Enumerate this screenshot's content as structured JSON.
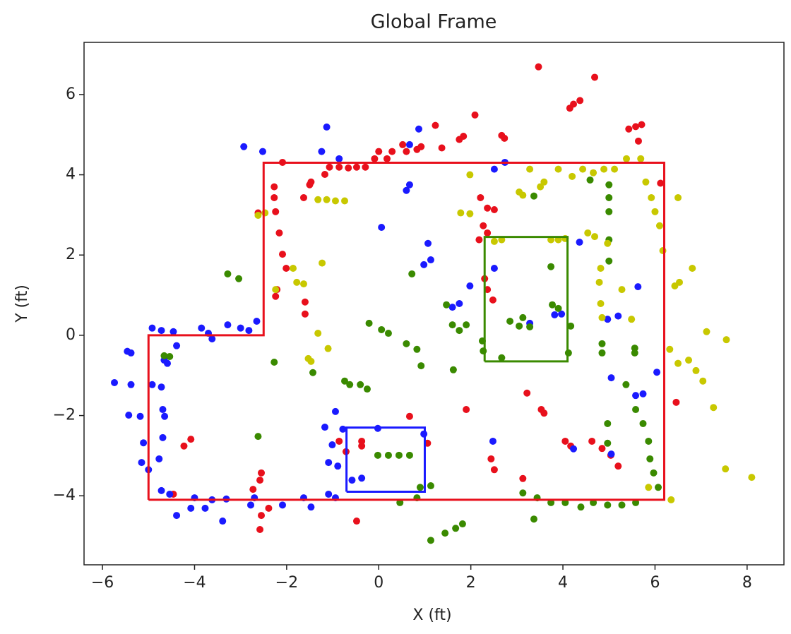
{
  "chart_data": {
    "type": "scatter",
    "title": "Global Frame",
    "xlabel": "X (ft)",
    "ylabel": "Y (ft)",
    "xlim": [
      -6.4,
      8.8
    ],
    "ylim": [
      -5.72,
      7.3
    ],
    "xticks": [
      {
        "value": -6,
        "label": "−6"
      },
      {
        "value": -4,
        "label": "−4"
      },
      {
        "value": -2,
        "label": "−2"
      },
      0,
      2,
      4,
      6,
      8
    ],
    "yticks": [
      {
        "value": -4,
        "label": "−4"
      },
      {
        "value": -2,
        "label": "−2"
      },
      0,
      2,
      4,
      6
    ],
    "series": [
      {
        "color": "#e8101c",
        "x": [
          3.47,
          4.69,
          4.23,
          4.15,
          4.37,
          2.09,
          1.23,
          5.43,
          5.58,
          5.71,
          5.64,
          2.67,
          2.73,
          1.84,
          1.75,
          1.37,
          0.83,
          0.92,
          0.52,
          0.6,
          0.29,
          0.18,
          0,
          -0.09,
          -0.29,
          -0.48,
          -0.66,
          -0.86,
          -1.07,
          -1.17,
          -1.47,
          -1.5,
          -2.09,
          -2.27,
          -2.27,
          -2.24,
          -2.16,
          -2.09,
          -2.01,
          -2.21,
          -2.24,
          -1.6,
          -1.6,
          -2.62,
          -1.63,
          2.21,
          2.36,
          2.51,
          2.27,
          2.36,
          2.18,
          2.3,
          2.36,
          2.48,
          6.12,
          6.46,
          3.22,
          3.53,
          3.59,
          1.9,
          0.67,
          1.06,
          -0.37,
          -0.37,
          -0.71,
          -0.86,
          2.44,
          2.51,
          3.13,
          4.05,
          4.17,
          4.63,
          4.85,
          5.04,
          5.2,
          -0.48,
          -2.58,
          -4.23,
          -4.08,
          -4.46,
          -2.58,
          -2.55,
          -2.73,
          -2.39,
          -2.55
        ],
        "y": [
          6.69,
          6.43,
          5.76,
          5.66,
          5.85,
          5.49,
          5.23,
          5.14,
          5.2,
          5.25,
          4.84,
          4.98,
          4.91,
          4.96,
          4.88,
          4.67,
          4.63,
          4.7,
          4.75,
          4.58,
          4.58,
          4.4,
          4.58,
          4.4,
          4.19,
          4.19,
          4.17,
          4.19,
          4.19,
          4.01,
          3.82,
          3.75,
          4.31,
          3.7,
          3.43,
          3.08,
          2.55,
          2.02,
          1.67,
          1.14,
          0.97,
          0.83,
          0.53,
          3.05,
          3.43,
          3.43,
          3.17,
          3.13,
          2.73,
          2.55,
          2.38,
          1.41,
          1.14,
          0.88,
          3.79,
          -1.67,
          -1.44,
          -1.85,
          -1.94,
          -1.85,
          -2.02,
          -2.69,
          -2.64,
          -2.76,
          -2.9,
          -2.64,
          -3.08,
          -3.35,
          -3.57,
          -2.64,
          -2.76,
          -2.64,
          -2.82,
          -2.99,
          -3.26,
          -4.63,
          -4.84,
          -2.76,
          -2.59,
          -3.96,
          -3.61,
          -3.43,
          -3.84,
          -4.31,
          -4.49
        ]
      },
      {
        "color": "#1a1aff",
        "x": [
          -5.74,
          -5.46,
          -5.38,
          -5.38,
          -5.43,
          -5.18,
          -5.11,
          -5.15,
          -5,
          -4.92,
          -4.72,
          -4.46,
          -4.39,
          -4.66,
          -4.59,
          -4.92,
          -4.72,
          -4.69,
          -4.65,
          -4.69,
          -4.77,
          -4.72,
          -4.54,
          -4.39,
          -4.08,
          -4,
          -3.85,
          -3.7,
          -3.62,
          -3.28,
          -3,
          -2.82,
          -2.65,
          -2.93,
          -2.52,
          -1.13,
          -1.24,
          -0.86,
          0.67,
          0.87,
          0.6,
          0.67,
          0.06,
          1.07,
          0.98,
          1.13,
          1.6,
          1.75,
          1.98,
          2.51,
          2.74,
          2.51,
          3.28,
          3.82,
          3.97,
          4.36,
          4.97,
          5.2,
          5.63,
          5.05,
          5.58,
          5.74,
          6.04,
          5.05,
          4.23,
          2.48,
          -0.94,
          -1.17,
          -1.01,
          -0.78,
          -1.09,
          -0.89,
          -0.58,
          -0.37,
          -0.02,
          0.98,
          -1.09,
          -0.94,
          -1.63,
          -1.47,
          -2.09,
          -2.78,
          -2.7,
          -3.31,
          -3.39,
          -3.77,
          -3.62
        ],
        "y": [
          -1.18,
          -0.4,
          -0.44,
          -1.23,
          -1.99,
          -2.02,
          -2.68,
          -3.17,
          -3.35,
          0.18,
          0.12,
          0.09,
          -0.26,
          -0.62,
          -0.7,
          -1.23,
          -1.29,
          -1.85,
          -2.02,
          -2.55,
          -3.08,
          -3.87,
          -3.96,
          -4.49,
          -4.31,
          -4.05,
          0.18,
          0.05,
          -0.09,
          0.26,
          0.18,
          0.12,
          0.35,
          4.7,
          4.58,
          5.19,
          4.58,
          4.4,
          4.75,
          5.14,
          3.61,
          3.75,
          2.69,
          2.29,
          1.76,
          1.88,
          0.7,
          0.79,
          1.23,
          4.14,
          4.31,
          1.67,
          0.3,
          0.51,
          0.53,
          2.32,
          0.4,
          0.48,
          1.21,
          -1.06,
          -1.5,
          -1.46,
          -0.92,
          -2.96,
          -2.83,
          -2.64,
          -1.9,
          -2.29,
          -2.73,
          -2.34,
          -3.17,
          -3.26,
          -3.61,
          -3.56,
          -2.32,
          -2.46,
          -3.96,
          -4.05,
          -4.05,
          -4.28,
          -4.23,
          -4.23,
          -4.05,
          -4.08,
          -4.63,
          -4.31,
          -4.1
        ]
      },
      {
        "color": "#3a8a00",
        "x": [
          -3.28,
          -3.04,
          -4.66,
          -4.54,
          -2.27,
          -1.43,
          -2.62,
          -0.74,
          -0.63,
          -0.4,
          -0.25,
          -0.21,
          0.06,
          0.21,
          0.6,
          0.83,
          0.92,
          0.72,
          -0.02,
          0.21,
          0.44,
          0.67,
          0.9,
          1.13,
          0.46,
          0.83,
          1.13,
          1.44,
          1.67,
          1.82,
          1.47,
          1.6,
          1.75,
          1.9,
          1.62,
          2.25,
          2.27,
          2.67,
          2.85,
          3.05,
          3.13,
          3.28,
          3.74,
          3.77,
          3.9,
          4.17,
          4.12,
          3.37,
          5,
          5,
          5,
          5,
          5,
          4.85,
          4.85,
          4.59,
          5.56,
          5.56,
          5.37,
          5.58,
          5.74,
          5.86,
          5.89,
          5.97,
          6.07,
          4.97,
          4.97,
          3.13,
          3.44,
          3.74,
          4.05,
          4.39,
          4.66,
          4.97,
          5.28,
          5.58,
          3.37
        ],
        "y": [
          1.53,
          1.41,
          -0.51,
          -0.53,
          -0.67,
          -0.93,
          -2.52,
          -1.14,
          -1.23,
          -1.23,
          -1.34,
          0.3,
          0.14,
          0.05,
          -0.21,
          -0.35,
          -0.76,
          1.53,
          -2.99,
          -2.99,
          -2.99,
          -2.99,
          -3.79,
          -3.75,
          -4.17,
          -4.05,
          -5.11,
          -4.93,
          -4.81,
          -4.7,
          0.76,
          0.26,
          0.12,
          0.26,
          -0.86,
          -0.14,
          -0.39,
          -0.56,
          0.35,
          0.23,
          0.44,
          0.21,
          1.71,
          0.76,
          0.67,
          0.23,
          -0.44,
          3.47,
          3.75,
          3.43,
          3.08,
          2.38,
          1.85,
          -0.21,
          -0.44,
          3.87,
          -0.32,
          -0.44,
          -1.23,
          -1.85,
          -2.2,
          -2.64,
          -3.08,
          -3.43,
          -3.79,
          -2.2,
          -2.69,
          -3.93,
          -4.05,
          -4.17,
          -4.17,
          -4.28,
          -4.17,
          -4.23,
          -4.23,
          -4.17,
          -4.58
        ]
      },
      {
        "color": "#c8c800",
        "x": [
          -2.62,
          -2.47,
          -2.24,
          -1.86,
          -1.78,
          -1.63,
          -1.23,
          -1.32,
          -1.13,
          -0.94,
          -0.74,
          -1.32,
          -1.1,
          -1.53,
          -1.47,
          1.78,
          1.98,
          1.98,
          2.51,
          2.67,
          3.05,
          3.13,
          3.28,
          3.59,
          3.51,
          3.74,
          3.9,
          4.05,
          3.9,
          4.2,
          4.43,
          4.66,
          4.89,
          5.12,
          5.38,
          5.69,
          5.8,
          5.92,
          6,
          6.1,
          6.17,
          4.54,
          4.69,
          4.97,
          4.82,
          4.79,
          4.82,
          4.85,
          5.28,
          5.49,
          6.5,
          6.43,
          6.53,
          6.81,
          7.12,
          7.55,
          6.32,
          6.5,
          6.73,
          6.89,
          7.04,
          7.27,
          7.53,
          8.1,
          5.86,
          6.35
        ],
        "y": [
          2.99,
          3.05,
          1.14,
          1.67,
          1.32,
          1.28,
          1.8,
          3.38,
          3.38,
          3.35,
          3.35,
          0.05,
          -0.33,
          -0.58,
          -0.65,
          3.05,
          3.03,
          4,
          2.34,
          2.38,
          3.57,
          3.49,
          4.14,
          3.82,
          3.7,
          2.38,
          2.38,
          2.41,
          4.14,
          3.96,
          4.14,
          4.05,
          4.14,
          4.14,
          4.4,
          4.4,
          3.82,
          3.43,
          3.08,
          2.73,
          2.11,
          2.55,
          2.46,
          2.29,
          1.67,
          1.32,
          0.79,
          0.44,
          1.14,
          0.4,
          3.43,
          1.23,
          1.32,
          1.67,
          0.09,
          -0.11,
          -0.35,
          -0.7,
          -0.62,
          -0.88,
          -1.14,
          -1.8,
          -3.33,
          -3.54,
          -3.79,
          -4.1
        ]
      }
    ],
    "outlines": [
      {
        "color": "#e8101c",
        "x": [
          -5,
          -5,
          -2.5,
          -2.5,
          6.2,
          6.2,
          -5
        ],
        "y": [
          -4.1,
          0,
          0,
          4.3,
          4.3,
          -4.1,
          -4.1
        ]
      },
      {
        "color": "#3a8a00",
        "x": [
          2.3,
          2.3,
          4.1,
          4.1,
          2.3
        ],
        "y": [
          -0.65,
          2.45,
          2.45,
          -0.65,
          -0.65
        ]
      },
      {
        "color": "#1a1aff",
        "x": [
          -0.7,
          -0.7,
          1.0,
          1.0,
          -0.7
        ],
        "y": [
          -3.9,
          -2.3,
          -2.3,
          -3.9,
          -3.9
        ]
      }
    ]
  }
}
